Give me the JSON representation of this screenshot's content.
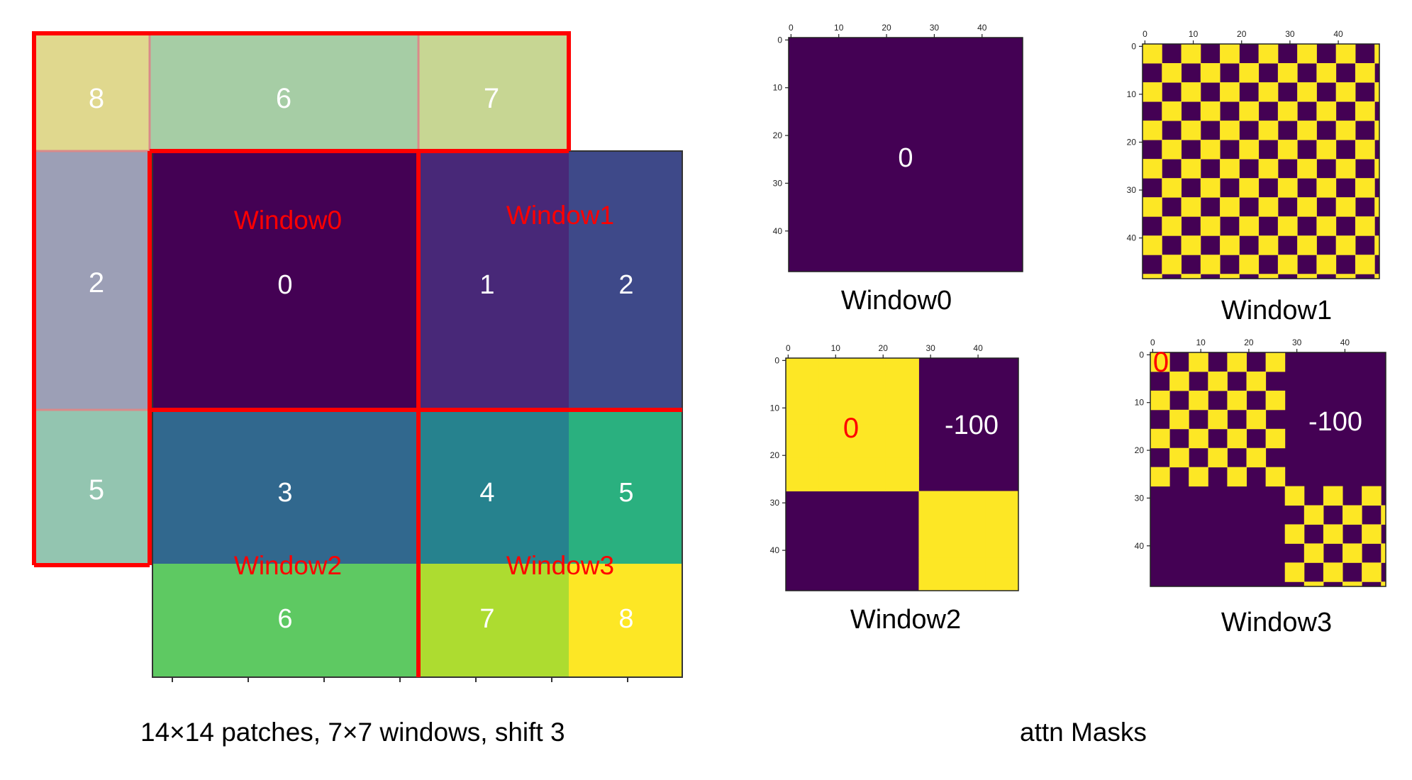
{
  "left_diagram": {
    "caption": "14×14 patches, 7×7 windows, shift 3",
    "window_labels": [
      "Window0",
      "Window1",
      "Window2",
      "Window3"
    ],
    "region_labels": {
      "top": [
        "8",
        "6",
        "7"
      ],
      "left": [
        "2",
        "5"
      ],
      "grid": [
        "0",
        "1",
        "2",
        "3",
        "4",
        "5",
        "6",
        "7",
        "8"
      ]
    },
    "colors": {
      "r0": "#440154",
      "r1": "#482878",
      "r2": "#3e4989",
      "r3": "#31688e",
      "r4": "#26828e",
      "r5": "#1f9e89",
      "r6": "#35b779",
      "r7": "#6ece58",
      "r8": "#fde725",
      "r7b": "#b5de2b",
      "border": "#ff0000",
      "label_red": "#ff0000"
    }
  },
  "right_diagram": {
    "caption": "attn Masks",
    "masks": [
      {
        "name": "Window0",
        "annotations": [
          "0"
        ]
      },
      {
        "name": "Window1",
        "annotations": []
      },
      {
        "name": "Window2",
        "annotations": [
          "0",
          "-100"
        ]
      },
      {
        "name": "Window3",
        "annotations": [
          "0",
          "-100"
        ]
      }
    ],
    "axis_ticks": [
      "0",
      "10",
      "20",
      "30",
      "40"
    ],
    "colors": {
      "masked": "#440154",
      "open": "#fde725"
    }
  }
}
